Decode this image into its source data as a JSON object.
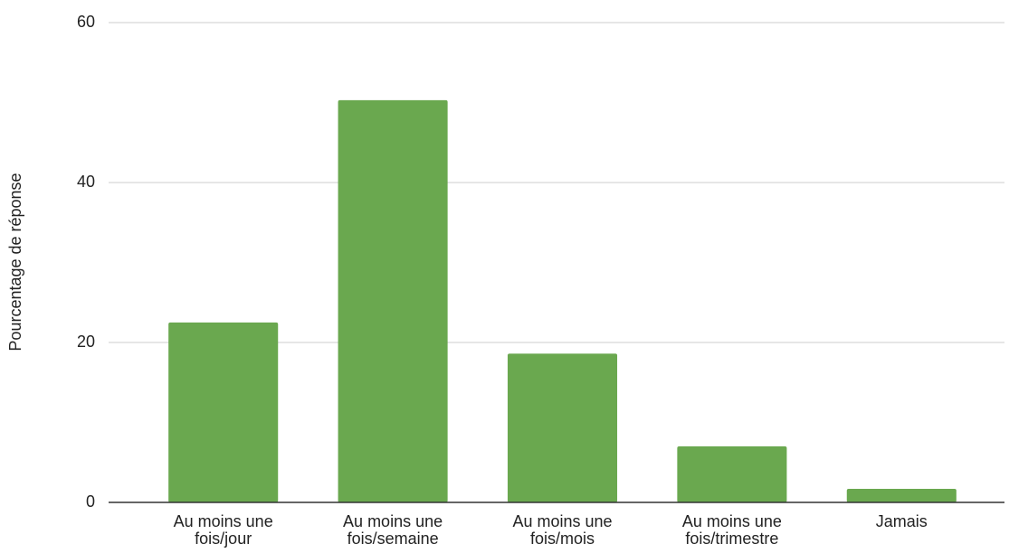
{
  "chart_data": {
    "type": "bar",
    "y_label": "Pourcentage de réponse",
    "categories": [
      "Au moins une fois/jour",
      "Au moins une fois/semaine",
      "Au moins une fois/mois",
      "Au moins une fois/trimestre",
      "Jamais"
    ],
    "values": [
      22.5,
      50.3,
      18.6,
      7.0,
      1.7
    ],
    "color": "#6aa84f",
    "ylim": [
      0,
      60
    ],
    "yticks": [
      0,
      20,
      40,
      60
    ],
    "grid": true
  }
}
